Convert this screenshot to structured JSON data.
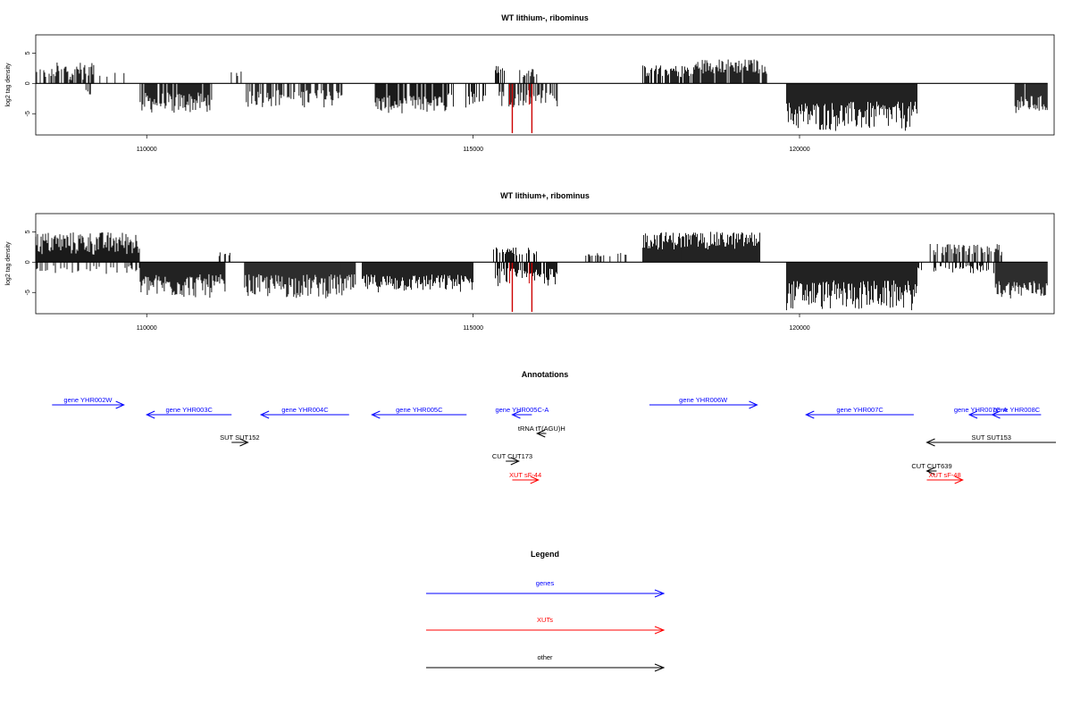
{
  "colors": {
    "genes": "#0000ff",
    "xuts": "#ff0000",
    "other": "#000000",
    "highlight": "#cc0000"
  },
  "chart_data": [
    {
      "type": "bar",
      "title": "WT lithium-, ribominus",
      "ylabel": "log2 tag density",
      "xlim": [
        108300,
        123900
      ],
      "ylim": [
        -8.5,
        8
      ],
      "x_ticks": [
        110000,
        115000,
        120000
      ],
      "y_ticks": [
        5,
        0,
        -5
      ],
      "x_tick_labels": [
        "110000",
        "115000",
        "120000"
      ],
      "y_tick_labels": [
        "5",
        "0",
        "-5"
      ],
      "series": [
        {
          "values": [
            {
              "x0": 108300,
              "x1": 108600,
              "strand": "+",
              "min": 0.5,
              "max": 2.5,
              "density": 0.5
            },
            {
              "x0": 108600,
              "x1": 109200,
              "strand": "+",
              "min": 0.5,
              "max": 3.5,
              "density": 0.7
            },
            {
              "x0": 109200,
              "x1": 109700,
              "strand": "+",
              "min": 0.4,
              "max": 2.5,
              "density": 0.2
            },
            {
              "x0": 109000,
              "x1": 109200,
              "strand": "-",
              "min": -2,
              "max": -1,
              "density": 0.2
            },
            {
              "x0": 109900,
              "x1": 111000,
              "strand": "-",
              "min": -5,
              "max": -1.5,
              "density": 0.9
            },
            {
              "x0": 111200,
              "x1": 111500,
              "strand": "+",
              "min": 1,
              "max": 2,
              "density": 0.3
            },
            {
              "x0": 111500,
              "x1": 113000,
              "strand": "-",
              "min": -4,
              "max": -1,
              "density": 0.5
            },
            {
              "x0": 113500,
              "x1": 114600,
              "strand": "-",
              "min": -5,
              "max": -2,
              "density": 0.9
            },
            {
              "x0": 114600,
              "x1": 115200,
              "strand": "-",
              "min": -4,
              "max": -1,
              "density": 0.4
            },
            {
              "x0": 115300,
              "x1": 115500,
              "strand": "+",
              "min": 1,
              "max": 3,
              "density": 0.5
            },
            {
              "x0": 115400,
              "x1": 116300,
              "strand": "-",
              "min": -4,
              "max": -1,
              "density": 0.6
            },
            {
              "x0": 115700,
              "x1": 116000,
              "strand": "+",
              "min": 1,
              "max": 2.5,
              "density": 0.5
            },
            {
              "x0": 117600,
              "x1": 118400,
              "strand": "+",
              "min": 1,
              "max": 3,
              "density": 0.8
            },
            {
              "x0": 118400,
              "x1": 119500,
              "strand": "+",
              "min": 1.5,
              "max": 4,
              "density": 0.9
            },
            {
              "x0": 119800,
              "x1": 121800,
              "strand": "-",
              "min": -8,
              "max": -3,
              "density": 1.0
            },
            {
              "x0": 123000,
              "x1": 123200,
              "strand": "+",
              "min": 1,
              "max": 2,
              "density": 0.2
            },
            {
              "x0": 123300,
              "x1": 123800,
              "strand": "-",
              "min": -5,
              "max": -2,
              "density": 0.9
            }
          ]
        }
      ],
      "highlight_x": [
        115600,
        115900
      ]
    },
    {
      "type": "bar",
      "title": "WT lithium+, ribominus",
      "ylabel": "log2 tag density",
      "xlim": [
        108300,
        123900
      ],
      "ylim": [
        -8.5,
        8
      ],
      "x_ticks": [
        110000,
        115000,
        120000
      ],
      "y_ticks": [
        5,
        0,
        -5
      ],
      "x_tick_labels": [
        "110000",
        "115000",
        "120000"
      ],
      "y_tick_labels": [
        "5",
        "0",
        "-5"
      ],
      "series": [
        {
          "values": [
            {
              "x0": 108300,
              "x1": 109900,
              "strand": "+",
              "min": 1,
              "max": 5,
              "density": 1.0
            },
            {
              "x0": 108300,
              "x1": 109900,
              "strand": "-",
              "min": -2,
              "max": -0.5,
              "density": 0.3
            },
            {
              "x0": 109900,
              "x1": 111200,
              "strand": "-",
              "min": -6,
              "max": -2,
              "density": 1.0
            },
            {
              "x0": 111000,
              "x1": 111300,
              "strand": "+",
              "min": 1,
              "max": 2,
              "density": 0.4
            },
            {
              "x0": 111500,
              "x1": 113200,
              "strand": "-",
              "min": -6,
              "max": -2,
              "density": 1.0
            },
            {
              "x0": 113300,
              "x1": 115000,
              "strand": "-",
              "min": -5,
              "max": -2,
              "density": 1.0
            },
            {
              "x0": 115300,
              "x1": 116000,
              "strand": "+",
              "min": 1,
              "max": 2.5,
              "density": 0.6
            },
            {
              "x0": 115300,
              "x1": 116300,
              "strand": "-",
              "min": -4,
              "max": -1,
              "density": 0.7
            },
            {
              "x0": 116700,
              "x1": 117400,
              "strand": "+",
              "min": 0.5,
              "max": 1.5,
              "density": 0.3
            },
            {
              "x0": 117600,
              "x1": 119400,
              "strand": "+",
              "min": 2,
              "max": 5,
              "density": 1.0
            },
            {
              "x0": 119800,
              "x1": 121800,
              "strand": "-",
              "min": -8,
              "max": -3,
              "density": 1.0
            },
            {
              "x0": 122000,
              "x1": 123100,
              "strand": "+",
              "min": 1,
              "max": 3,
              "density": 0.6
            },
            {
              "x0": 121800,
              "x1": 123000,
              "strand": "-",
              "min": -2,
              "max": -0.5,
              "density": 0.4
            },
            {
              "x0": 123000,
              "x1": 123800,
              "strand": "-",
              "min": -6,
              "max": -3,
              "density": 1.0
            }
          ]
        }
      ],
      "highlight_x": [
        115600,
        115900
      ]
    }
  ],
  "annotations": {
    "title": "Annotations",
    "features": [
      {
        "label": "gene YHR002W",
        "type": "genes",
        "start": 108550,
        "end": 109650,
        "strand": "+",
        "row": 0
      },
      {
        "label": "gene YHR003C",
        "type": "genes",
        "start": 110000,
        "end": 111300,
        "strand": "-",
        "row": 1
      },
      {
        "label": "gene YHR004C",
        "type": "genes",
        "start": 111750,
        "end": 113100,
        "strand": "-",
        "row": 1
      },
      {
        "label": "gene YHR005C",
        "type": "genes",
        "start": 113450,
        "end": 114900,
        "strand": "-",
        "row": 1
      },
      {
        "label": "gene YHR005C-A",
        "type": "genes",
        "start": 115600,
        "end": 115900,
        "strand": "-",
        "row": 1
      },
      {
        "label": "gene YHR006W",
        "type": "genes",
        "start": 117700,
        "end": 119350,
        "strand": "+",
        "row": 0
      },
      {
        "label": "gene YHR007C",
        "type": "genes",
        "start": 120100,
        "end": 121750,
        "strand": "-",
        "row": 1
      },
      {
        "label": "gene YHR007C-A",
        "type": "genes",
        "start": 122600,
        "end": 122950,
        "strand": "-",
        "row": 1
      },
      {
        "label": "gene YHR008C",
        "type": "genes",
        "start": 122950,
        "end": 123700,
        "strand": "-",
        "row": 1
      },
      {
        "label": "tRNA tT(AGU)H",
        "type": "other",
        "start": 115980,
        "end": 116120,
        "strand": "-",
        "row": 2
      },
      {
        "label": "SUT SUT152",
        "type": "other",
        "start": 111300,
        "end": 111550,
        "strand": "+",
        "row": 3
      },
      {
        "label": "SUT SUT153",
        "type": "other",
        "start": 121950,
        "end": 124200,
        "strand": "-",
        "row": 3
      },
      {
        "label": "CUT CUT173",
        "type": "other",
        "start": 115500,
        "end": 115700,
        "strand": "+",
        "row": 4
      },
      {
        "label": "CUT CUT639",
        "type": "other",
        "start": 121950,
        "end": 122100,
        "strand": "-",
        "row": 5
      },
      {
        "label": "XUT sF-44",
        "type": "xuts",
        "start": 115600,
        "end": 116000,
        "strand": "+",
        "row": 6
      },
      {
        "label": "XUT sF-48",
        "type": "xuts",
        "start": 121950,
        "end": 122500,
        "strand": "+",
        "row": 6
      }
    ]
  },
  "legend": {
    "title": "Legend",
    "items": [
      {
        "label": "genes",
        "color": "#0000ff"
      },
      {
        "label": "XUTs",
        "color": "#ff0000"
      },
      {
        "label": "other",
        "color": "#000000"
      }
    ]
  }
}
